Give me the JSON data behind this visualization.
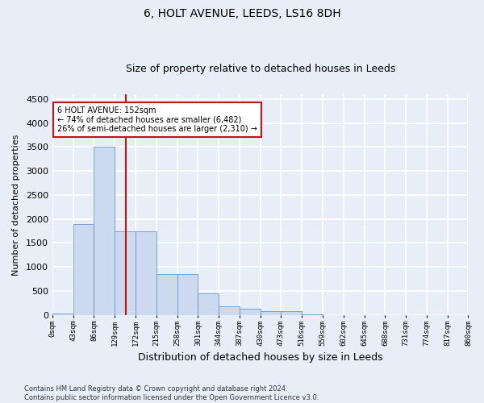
{
  "title": "6, HOLT AVENUE, LEEDS, LS16 8DH",
  "subtitle": "Size of property relative to detached houses in Leeds",
  "xlabel": "Distribution of detached houses by size in Leeds",
  "ylabel": "Number of detached properties",
  "bar_color": "#ccd9ee",
  "bar_edge_color": "#6699cc",
  "property_size": 152,
  "vline_color": "#cc1111",
  "annotation_text": "6 HOLT AVENUE: 152sqm\n← 74% of detached houses are smaller (6,482)\n26% of semi-detached houses are larger (2,310) →",
  "annotation_box_color": "#ffffff",
  "annotation_box_edge": "#cc1111",
  "footer": "Contains HM Land Registry data © Crown copyright and database right 2024.\nContains public sector information licensed under the Open Government Licence v3.0.",
  "bin_edges": [
    0,
    43,
    86,
    129,
    172,
    215,
    258,
    301,
    344,
    387,
    430,
    473,
    516,
    559,
    602,
    645,
    688,
    731,
    774,
    817,
    860
  ],
  "counts": [
    25,
    1900,
    3500,
    1750,
    1750,
    850,
    850,
    450,
    175,
    125,
    75,
    75,
    20,
    5,
    3,
    2,
    1,
    1,
    0,
    0
  ],
  "ylim": [
    0,
    4600
  ],
  "yticks": [
    0,
    500,
    1000,
    1500,
    2000,
    2500,
    3000,
    3500,
    4000,
    4500
  ],
  "background_color": "#e8eef8",
  "plot_background": "#e8eef8",
  "grid_color": "#ffffff",
  "title_fontsize": 10,
  "subtitle_fontsize": 9,
  "footer_fontsize": 6
}
